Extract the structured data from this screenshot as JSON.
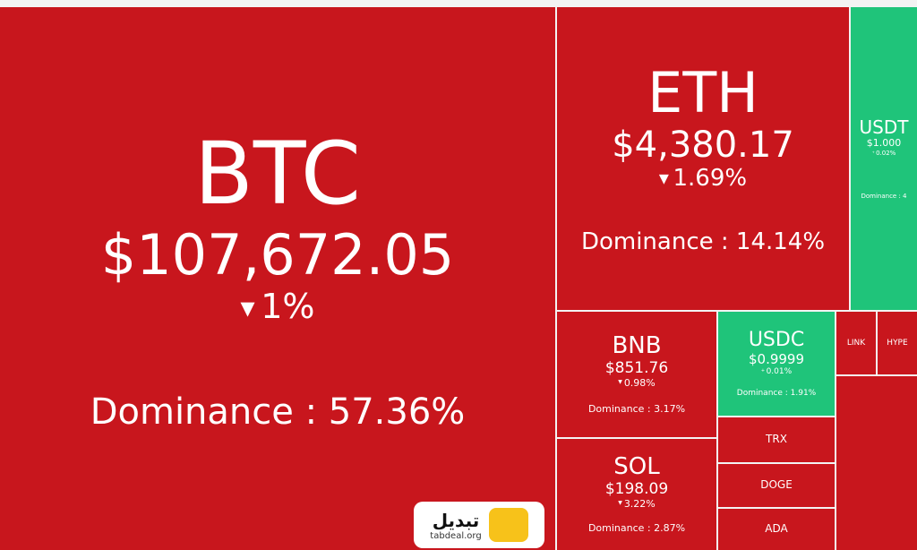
{
  "tiles": [
    {
      "symbol": "BTC",
      "price": "$107,672.05",
      "change": "1%",
      "dominance": "Dominance : 57.36%",
      "color": "#c8161d"
    },
    {
      "symbol": "ETH",
      "price": "$4,380.17",
      "change": "1.69%",
      "dominance": "Dominance : 14.14%",
      "color": "#c8161d"
    },
    {
      "symbol": "USDT",
      "price": "$1.000",
      "change": "0.02%",
      "dominance": "Dominance : 4",
      "color": "#1fc47a"
    },
    {
      "symbol": "BNB",
      "price": "$851.76",
      "change": "0.98%",
      "dominance": "Dominance : 3.17%",
      "color": "#c8161d"
    },
    {
      "symbol": "SOL",
      "price": "$198.09",
      "change": "3.22%",
      "dominance": "Dominance : 2.87%",
      "color": "#c8161d"
    },
    {
      "symbol": "USDC",
      "price": "$0.9999",
      "change": "0.01%",
      "dominance": "Dominance : 1.91%",
      "color": "#1fc47a"
    },
    {
      "symbol": "TRX",
      "color": "#c8161d"
    },
    {
      "symbol": "DOGE",
      "color": "#c8161d"
    },
    {
      "symbol": "ADA",
      "color": "#c8161d"
    },
    {
      "symbol": "LINK",
      "color": "#c8161d"
    },
    {
      "symbol": "HYPE",
      "color": "#c8161d"
    }
  ],
  "logo": {
    "name": "تبدیل",
    "site": "tabdeal.org"
  }
}
